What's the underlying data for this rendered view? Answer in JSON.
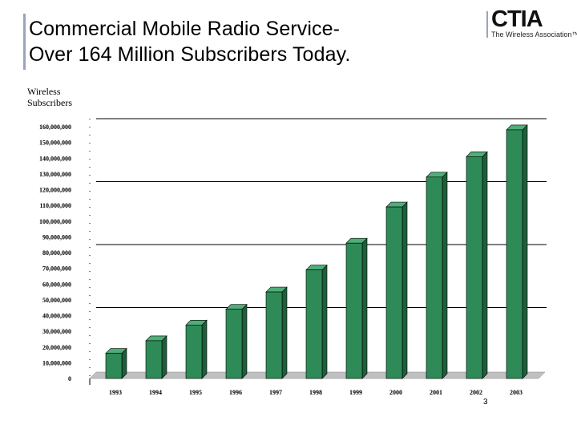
{
  "slide": {
    "title_line1": "Commercial Mobile Radio Service-",
    "title_line2": "Over 164 Million Subscribers Today.",
    "logo": {
      "name": "CTIA",
      "tagline": "The Wireless Association™"
    },
    "page_number": "3",
    "colors": {
      "bar": "#2e8b57",
      "bar_side": "#1f5e3b",
      "bar_top": "#4fae78",
      "floor": "#c0c0c0",
      "accent": "#9aa3bd"
    }
  },
  "chart_data": {
    "type": "bar",
    "title": "",
    "ylabel_lines": [
      "Wireless",
      "Subscribers"
    ],
    "xlabel": "",
    "categories": [
      "1993",
      "1994",
      "1995",
      "1996",
      "1997",
      "1998",
      "1999",
      "2000",
      "2001",
      "2002",
      "2003"
    ],
    "values": [
      16000000,
      24000000,
      34000000,
      44000000,
      55000000,
      69000000,
      86000000,
      109000000,
      128000000,
      141000000,
      158000000
    ],
    "ylim": [
      0,
      160000000
    ],
    "yticks": [
      0,
      10000000,
      20000000,
      30000000,
      40000000,
      50000000,
      60000000,
      70000000,
      80000000,
      90000000,
      100000000,
      110000000,
      120000000,
      130000000,
      140000000,
      150000000,
      160000000
    ],
    "ytick_labels": [
      "0",
      "10,000,000",
      "20,000,000",
      "30,000,000",
      "40,000,000",
      "50,000,000",
      "60,000,000",
      "70,000,000",
      "80,000,000",
      "90,000,000",
      "100,000,000",
      "110,000,000",
      "120,000,000",
      "130,000,000",
      "140,000,000",
      "150,000,000",
      "160,000,000"
    ],
    "gridlines": [
      0,
      40000000,
      80000000,
      120000000,
      160000000
    ],
    "grid": true
  }
}
